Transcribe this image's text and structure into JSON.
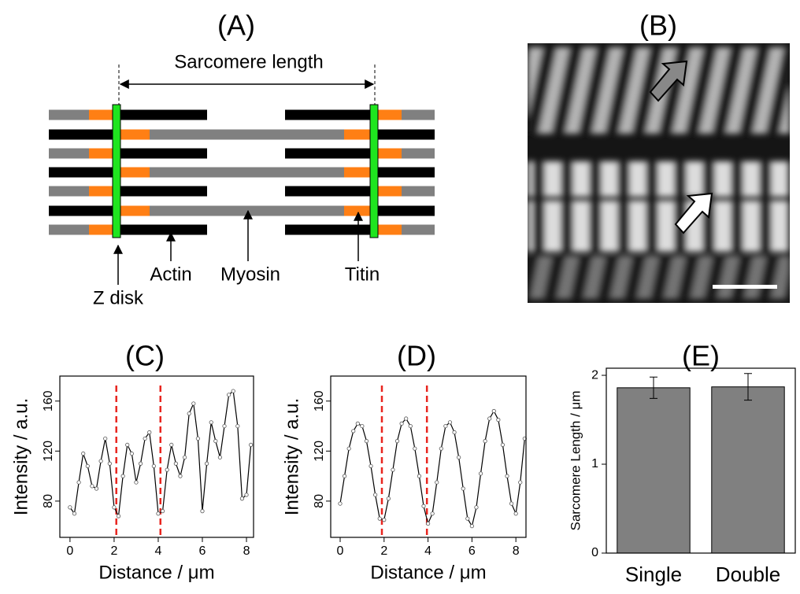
{
  "panel_labels": [
    "(A)",
    "(B)"
  ],
  "diagram": {
    "span_label": "Sarcomere length",
    "labels": [
      "Z disk",
      "Actin",
      "Myosin",
      "Titin"
    ]
  },
  "chart_data": [
    {
      "type": "line",
      "title": "(C)",
      "x_label": "Distance / μm",
      "y_label": "Intensity / a.u.",
      "x": [
        0,
        0.2,
        0.4,
        0.6,
        0.8,
        1.0,
        1.2,
        1.4,
        1.6,
        1.8,
        2.0,
        2.2,
        2.4,
        2.6,
        2.8,
        3.0,
        3.2,
        3.4,
        3.6,
        3.8,
        4.0,
        4.2,
        4.4,
        4.6,
        4.8,
        5.0,
        5.2,
        5.4,
        5.6,
        5.8,
        6.0,
        6.2,
        6.4,
        6.6,
        6.8,
        7.0,
        7.2,
        7.4,
        7.6,
        7.8,
        8.0,
        8.2
      ],
      "series": [
        {
          "color": "#000000",
          "values": [
            75,
            70,
            95,
            118,
            108,
            92,
            90,
            112,
            130,
            110,
            75,
            68,
            100,
            125,
            118,
            95,
            110,
            130,
            135,
            108,
            70,
            72,
            105,
            125,
            110,
            100,
            115,
            150,
            158,
            130,
            72,
            110,
            143,
            128,
            115,
            140,
            165,
            168,
            140,
            82,
            85,
            125
          ]
        }
      ],
      "vlines": [
        2.1,
        4.1
      ],
      "vline_color": "#e8251f",
      "xlim": [
        -0.46,
        8.32
      ],
      "ylim": [
        51,
        180
      ],
      "xticks": [
        0,
        2,
        4,
        6,
        8
      ],
      "yticks": [
        80,
        120,
        160
      ]
    },
    {
      "type": "line",
      "title": "(D)",
      "x_label": "Distance / μm",
      "y_label": "Intensity / a.u.",
      "x": [
        0,
        0.2,
        0.4,
        0.6,
        0.8,
        1.0,
        1.2,
        1.4,
        1.6,
        1.8,
        2.0,
        2.2,
        2.4,
        2.6,
        2.8,
        3.0,
        3.2,
        3.4,
        3.6,
        3.8,
        4.0,
        4.2,
        4.4,
        4.6,
        4.8,
        5.0,
        5.2,
        5.4,
        5.6,
        5.8,
        6.0,
        6.2,
        6.4,
        6.6,
        6.8,
        7.0,
        7.2,
        7.4,
        7.6,
        7.8,
        8.0,
        8.2,
        8.4
      ],
      "series": [
        {
          "color": "#000000",
          "values": [
            78,
            100,
            122,
            136,
            142,
            140,
            128,
            108,
            85,
            66,
            65,
            82,
            105,
            128,
            142,
            146,
            140,
            122,
            100,
            76,
            62,
            70,
            95,
            122,
            140,
            143,
            135,
            115,
            90,
            66,
            60,
            75,
            102,
            128,
            146,
            152,
            145,
            125,
            100,
            78,
            70,
            95,
            130
          ]
        }
      ],
      "vlines": [
        1.9,
        3.95
      ],
      "vline_color": "#e8251f",
      "xlim": [
        -0.43,
        8.46
      ],
      "ylim": [
        51,
        180
      ],
      "xticks": [
        0,
        2,
        4,
        6,
        8
      ],
      "yticks": [
        80,
        120,
        160
      ]
    },
    {
      "type": "bar",
      "title": "(E)",
      "y_label": "Sarcomere Length / μm",
      "categories": [
        "Single",
        "Double"
      ],
      "values": [
        1.86,
        1.87
      ],
      "errors": [
        0.12,
        0.15
      ],
      "color": "#808080",
      "ylim": [
        0,
        2.08
      ],
      "yticks": [
        0,
        1,
        2
      ]
    }
  ]
}
